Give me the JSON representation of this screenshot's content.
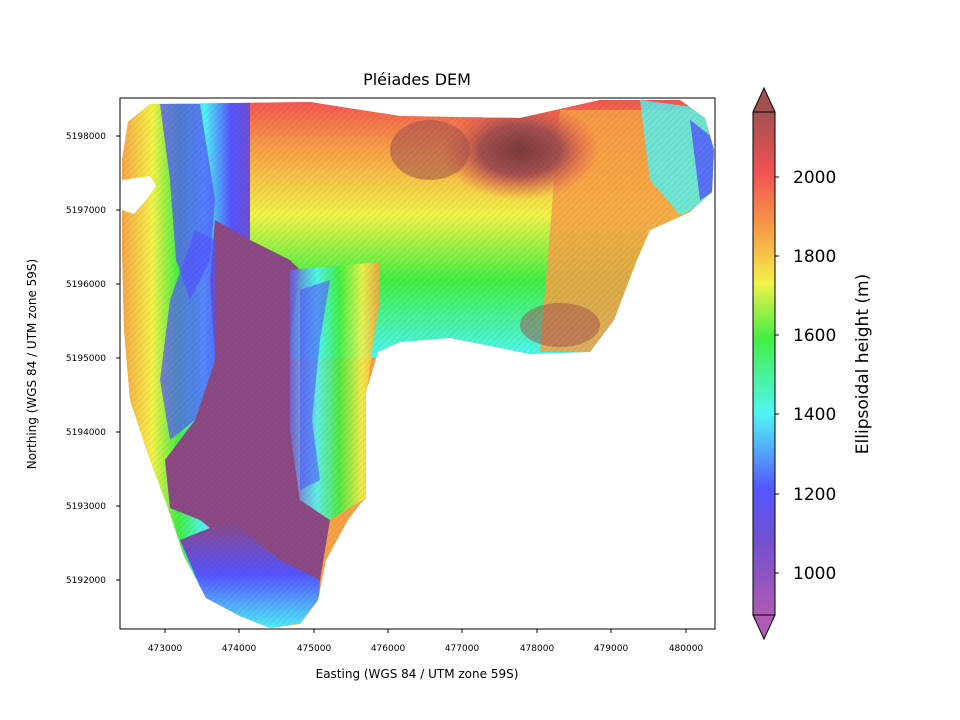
{
  "figure": {
    "title": "Pléiades DEM",
    "xlabel": "Easting (WGS 84 / UTM zone 59S)",
    "ylabel": "Northing (WGS 84 / UTM zone 59S)"
  },
  "x_ticks": [
    "473000",
    "474000",
    "475000",
    "476000",
    "477000",
    "478000",
    "479000",
    "480000"
  ],
  "y_ticks": [
    "5192000",
    "5193000",
    "5194000",
    "5195000",
    "5196000",
    "5197000",
    "5198000"
  ],
  "colorbar": {
    "label": "Ellipsoidal height (m)",
    "ticks": [
      "1000",
      "1200",
      "1400",
      "1600",
      "1800",
      "2000"
    ],
    "range": [
      880,
      2170
    ],
    "colormap": "rainbow (alpha 0.6 over hillshade)",
    "extend": "both"
  },
  "colors": {
    "purple": "#b05ab4",
    "blue": "#5555ff",
    "cyan": "#4ff5f5",
    "green": "#44ee44",
    "yellow": "#f2f24a",
    "orange": "#f6a146",
    "red": "#f25252",
    "maroon": "#a35050",
    "valley": "#8c4a84"
  }
}
